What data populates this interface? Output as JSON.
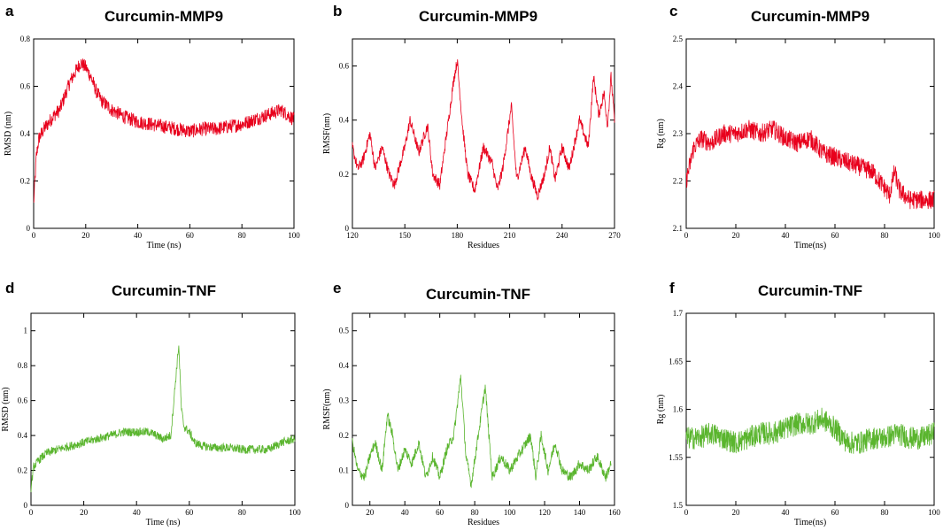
{
  "chart_data": [
    {
      "type": "line",
      "panel": "a",
      "title": "Curcumin-MMP9",
      "xlabel": "Time (ns)",
      "ylabel": "RMSD (nm)",
      "xlim": [
        0,
        100
      ],
      "ylim": [
        0,
        0.8
      ],
      "xticks": [
        "0",
        "20",
        "40",
        "60",
        "80",
        "100"
      ],
      "yticks": [
        "0",
        "0.2",
        "0.4",
        "0.6",
        "0.8"
      ],
      "color": "#e8001c",
      "series": [
        {
          "name": "Curcumin-MMP9 RMSD",
          "x": [
            0,
            1,
            2,
            4,
            6,
            8,
            10,
            12,
            14,
            16,
            18,
            20,
            22,
            24,
            26,
            28,
            30,
            35,
            40,
            45,
            50,
            55,
            60,
            65,
            70,
            75,
            80,
            85,
            90,
            95,
            100
          ],
          "y": [
            0.1,
            0.3,
            0.38,
            0.42,
            0.45,
            0.48,
            0.5,
            0.56,
            0.62,
            0.66,
            0.7,
            0.68,
            0.64,
            0.58,
            0.54,
            0.52,
            0.5,
            0.47,
            0.45,
            0.44,
            0.43,
            0.42,
            0.41,
            0.42,
            0.42,
            0.43,
            0.44,
            0.46,
            0.48,
            0.5,
            0.46
          ],
          "noise": 0.03
        }
      ]
    },
    {
      "type": "line",
      "panel": "b",
      "title": "Curcumin-MMP9",
      "xlabel": "Residues",
      "ylabel": "RMSF(nm)",
      "xlim": [
        120,
        270
      ],
      "ylim": [
        0,
        0.7
      ],
      "xticks": [
        "120",
        "150",
        "180",
        "210",
        "240",
        "270"
      ],
      "yticks": [
        "0",
        "0.2",
        "0.4",
        "0.6"
      ],
      "color": "#e8001c",
      "series": [
        {
          "name": "Curcumin-MMP9 RMSF",
          "x": [
            120,
            123,
            126,
            130,
            133,
            137,
            141,
            144,
            150,
            153,
            158,
            163,
            166,
            170,
            175,
            178,
            180,
            183,
            186,
            190,
            195,
            200,
            203,
            206,
            211,
            214,
            219,
            222,
            226,
            230,
            233,
            236,
            240,
            244,
            250,
            255,
            258,
            261,
            264,
            266,
            268,
            270
          ],
          "y": [
            0.3,
            0.22,
            0.25,
            0.35,
            0.22,
            0.3,
            0.2,
            0.16,
            0.3,
            0.4,
            0.28,
            0.38,
            0.2,
            0.16,
            0.4,
            0.55,
            0.62,
            0.38,
            0.2,
            0.14,
            0.3,
            0.24,
            0.14,
            0.22,
            0.45,
            0.18,
            0.3,
            0.2,
            0.12,
            0.2,
            0.3,
            0.18,
            0.3,
            0.22,
            0.4,
            0.3,
            0.56,
            0.42,
            0.5,
            0.38,
            0.56,
            0.4
          ],
          "noise": 0.02
        }
      ]
    },
    {
      "type": "line",
      "panel": "c",
      "title": "Curcumin-MMP9",
      "xlabel": "Time(ns)",
      "ylabel": "Rg (nm)",
      "xlim": [
        0,
        100
      ],
      "ylim": [
        2.1,
        2.5
      ],
      "xticks": [
        "0",
        "20",
        "40",
        "60",
        "80",
        "100"
      ],
      "yticks": [
        "2.1",
        "2.2",
        "2.3",
        "2.4",
        "2.5"
      ],
      "color": "#e8001c",
      "series": [
        {
          "name": "Curcumin-MMP9 Rg",
          "x": [
            0,
            3,
            6,
            10,
            15,
            20,
            25,
            30,
            35,
            40,
            45,
            50,
            55,
            60,
            65,
            70,
            75,
            78,
            82,
            84,
            86,
            90,
            95,
            100
          ],
          "y": [
            2.2,
            2.27,
            2.29,
            2.28,
            2.3,
            2.3,
            2.31,
            2.3,
            2.31,
            2.29,
            2.28,
            2.29,
            2.26,
            2.25,
            2.24,
            2.23,
            2.22,
            2.2,
            2.17,
            2.22,
            2.18,
            2.16,
            2.16,
            2.16
          ],
          "noise": 0.02
        }
      ]
    },
    {
      "type": "line",
      "panel": "d",
      "title": "Curcumin-TNF",
      "xlabel": "Time (ns)",
      "ylabel": "RMSD (nm)",
      "xlim": [
        0,
        100
      ],
      "ylim": [
        0,
        1.1
      ],
      "xticks": [
        "0",
        "20",
        "40",
        "60",
        "80",
        "100"
      ],
      "yticks": [
        "0",
        "0.2",
        "0.4",
        "0.6",
        "0.8",
        "1"
      ],
      "color": "#5ab52e",
      "series": [
        {
          "name": "Curcumin-TNF RMSD",
          "x": [
            0,
            1,
            3,
            6,
            10,
            15,
            20,
            25,
            30,
            35,
            40,
            45,
            50,
            53,
            55,
            56,
            57,
            58,
            60,
            62,
            65,
            70,
            75,
            80,
            85,
            90,
            95,
            100
          ],
          "y": [
            0.1,
            0.22,
            0.26,
            0.3,
            0.32,
            0.34,
            0.36,
            0.38,
            0.4,
            0.42,
            0.42,
            0.42,
            0.38,
            0.4,
            0.75,
            0.92,
            0.55,
            0.45,
            0.42,
            0.36,
            0.34,
            0.33,
            0.33,
            0.32,
            0.32,
            0.32,
            0.36,
            0.38
          ],
          "noise": 0.025
        }
      ]
    },
    {
      "type": "line",
      "panel": "e",
      "title": "Curcumin-TNF",
      "xlabel": "Residues",
      "ylabel": "RMSF(nm)",
      "xlim": [
        10,
        160
      ],
      "ylim": [
        0,
        0.55
      ],
      "xticks": [
        "20",
        "40",
        "60",
        "80",
        "100",
        "120",
        "140",
        "160"
      ],
      "yticks": [
        "0",
        "0.1",
        "0.2",
        "0.3",
        "0.4",
        "0.5"
      ],
      "color": "#5ab52e",
      "series": [
        {
          "name": "Curcumin-TNF RMSF",
          "x": [
            10,
            13,
            17,
            20,
            23,
            27,
            30,
            33,
            36,
            40,
            44,
            48,
            52,
            56,
            60,
            64,
            68,
            72,
            75,
            78,
            82,
            86,
            90,
            95,
            100,
            112,
            115,
            118,
            122,
            126,
            130,
            135,
            140,
            145,
            150,
            155,
            158
          ],
          "y": [
            0.18,
            0.1,
            0.08,
            0.14,
            0.18,
            0.1,
            0.26,
            0.2,
            0.1,
            0.16,
            0.12,
            0.18,
            0.08,
            0.14,
            0.08,
            0.16,
            0.2,
            0.37,
            0.14,
            0.06,
            0.2,
            0.34,
            0.08,
            0.14,
            0.1,
            0.2,
            0.08,
            0.2,
            0.1,
            0.18,
            0.1,
            0.08,
            0.12,
            0.1,
            0.14,
            0.08,
            0.12
          ],
          "noise": 0.015
        }
      ]
    },
    {
      "type": "line",
      "panel": "f",
      "title": "Curcumin-TNF",
      "xlabel": "Time(ns)",
      "ylabel": "Rg (nm)",
      "xlim": [
        0,
        100
      ],
      "ylim": [
        1.5,
        1.7
      ],
      "xticks": [
        "0",
        "20",
        "40",
        "60",
        "80",
        "100"
      ],
      "yticks": [
        "1.5",
        "1.55",
        "1.6",
        "1.65",
        "1.7"
      ],
      "color": "#5ab52e",
      "series": [
        {
          "name": "Curcumin-TNF Rg",
          "x": [
            0,
            5,
            10,
            15,
            20,
            25,
            30,
            35,
            40,
            45,
            50,
            55,
            60,
            65,
            70,
            75,
            80,
            85,
            90,
            95,
            100
          ],
          "y": [
            1.57,
            1.57,
            1.575,
            1.57,
            1.565,
            1.57,
            1.575,
            1.575,
            1.58,
            1.585,
            1.585,
            1.59,
            1.58,
            1.565,
            1.565,
            1.57,
            1.57,
            1.575,
            1.57,
            1.57,
            1.575
          ],
          "noise": 0.012
        }
      ]
    }
  ]
}
